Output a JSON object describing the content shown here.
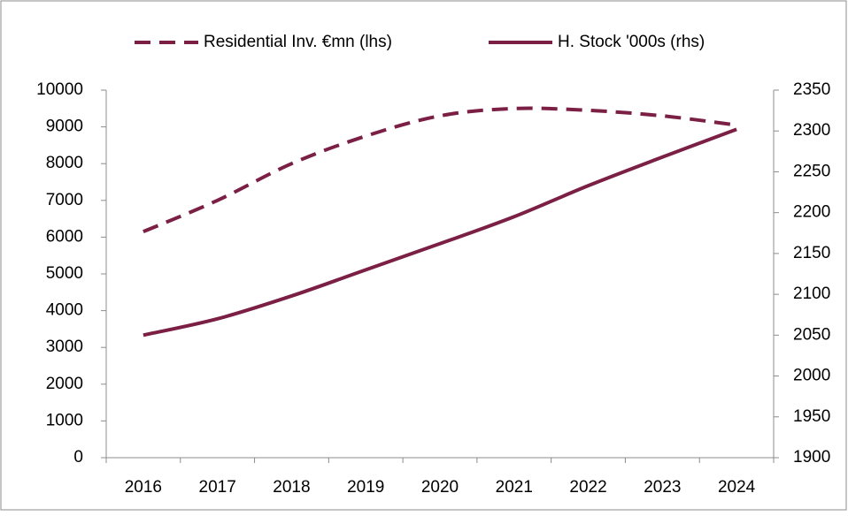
{
  "chart_data": {
    "type": "line",
    "categories": [
      "2016",
      "2017",
      "2018",
      "2019",
      "2020",
      "2021",
      "2022",
      "2023",
      "2024"
    ],
    "series": [
      {
        "name": "Residential Inv. €mn (lhs)",
        "color": "#7b1f45",
        "dash": true,
        "axis": "y",
        "values": [
          6150,
          7000,
          8000,
          8750,
          9300,
          9500,
          9450,
          9300,
          9050
        ]
      },
      {
        "name": "H. Stock '000s (rhs)",
        "color": "#7b1f45",
        "dash": false,
        "axis": "y2",
        "values": [
          2050,
          2070,
          2098,
          2130,
          2162,
          2195,
          2233,
          2268,
          2302
        ]
      }
    ],
    "ylim": [
      0,
      10000
    ],
    "yticks": [
      0,
      1000,
      2000,
      3000,
      4000,
      5000,
      6000,
      7000,
      8000,
      9000,
      10000
    ],
    "y2lim": [
      1900,
      2350
    ],
    "y2ticks": [
      1900,
      1950,
      2000,
      2050,
      2100,
      2150,
      2200,
      2250,
      2300,
      2350
    ],
    "grid": false,
    "legend": "top"
  }
}
